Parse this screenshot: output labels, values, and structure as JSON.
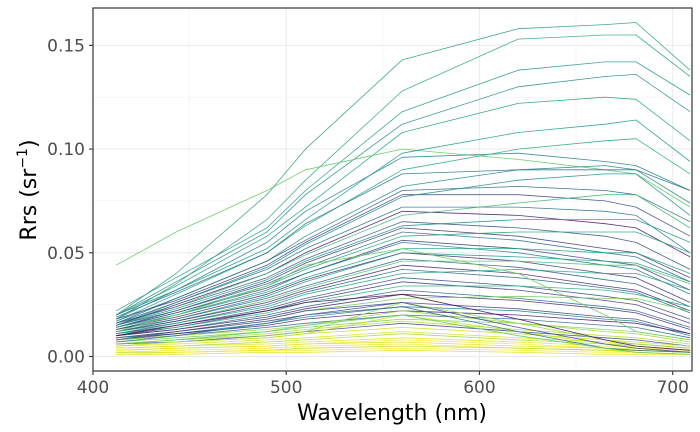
{
  "chart_data": {
    "type": "line",
    "xlabel": "Wavelength (nm)",
    "ylabel": {
      "main": "Rrs (sr",
      "superscript": "−1",
      "close": ")"
    },
    "xlim": [
      400,
      710
    ],
    "ylim": [
      -0.007,
      0.168
    ],
    "xticks": [
      400,
      500,
      600,
      700
    ],
    "xtick_labels": [
      "400",
      "500",
      "600",
      "700"
    ],
    "yticks": [
      0.0,
      0.05,
      0.1,
      0.15
    ],
    "ytick_labels": [
      "0.00",
      "0.05",
      "0.10",
      "0.15"
    ],
    "grid": true,
    "legend": "none",
    "colormap": "viridis",
    "palette": [
      "#440154",
      "#3b528b",
      "#21918c",
      "#5ec962",
      "#fde725"
    ],
    "x": [
      412,
      443,
      490,
      510,
      560,
      620,
      665,
      681,
      709
    ],
    "series": [
      {
        "values": [
          0.02,
          0.04,
          0.078,
          0.1,
          0.143,
          0.158,
          0.16,
          0.161,
          0.138
        ],
        "color": "#2f9e88"
      },
      {
        "values": [
          0.018,
          0.035,
          0.066,
          0.085,
          0.128,
          0.153,
          0.155,
          0.155,
          0.135
        ],
        "color": "#35a887"
      },
      {
        "values": [
          0.022,
          0.038,
          0.062,
          0.08,
          0.118,
          0.138,
          0.142,
          0.142,
          0.126
        ],
        "color": "#2a9b8a"
      },
      {
        "values": [
          0.02,
          0.036,
          0.06,
          0.078,
          0.112,
          0.13,
          0.135,
          0.136,
          0.118
        ],
        "color": "#2c8f8c"
      },
      {
        "values": [
          0.02,
          0.034,
          0.058,
          0.072,
          0.108,
          0.122,
          0.125,
          0.124,
          0.104
        ],
        "color": "#24a686"
      },
      {
        "values": [
          0.044,
          0.06,
          0.08,
          0.09,
          0.1,
          0.095,
          0.09,
          0.088,
          0.072
        ],
        "color": "#5ec962"
      },
      {
        "values": [
          0.018,
          0.032,
          0.052,
          0.066,
          0.098,
          0.108,
          0.112,
          0.114,
          0.094
        ],
        "color": "#1f9e89"
      },
      {
        "values": [
          0.02,
          0.032,
          0.055,
          0.07,
          0.096,
          0.098,
          0.094,
          0.092,
          0.08
        ],
        "color": "#26828e"
      },
      {
        "values": [
          0.017,
          0.03,
          0.05,
          0.063,
          0.09,
          0.1,
          0.104,
          0.105,
          0.088
        ],
        "color": "#27ad81"
      },
      {
        "values": [
          0.019,
          0.031,
          0.05,
          0.064,
          0.088,
          0.09,
          0.09,
          0.09,
          0.08
        ],
        "color": "#2d708e"
      },
      {
        "values": [
          0.017,
          0.028,
          0.046,
          0.058,
          0.082,
          0.09,
          0.092,
          0.09,
          0.074
        ],
        "color": "#238a8d"
      },
      {
        "values": [
          0.016,
          0.028,
          0.046,
          0.056,
          0.08,
          0.082,
          0.08,
          0.078,
          0.065
        ],
        "color": "#33638d"
      },
      {
        "values": [
          0.018,
          0.027,
          0.044,
          0.055,
          0.078,
          0.078,
          0.075,
          0.072,
          0.058
        ],
        "color": "#3e4a89"
      },
      {
        "values": [
          0.015,
          0.026,
          0.043,
          0.054,
          0.077,
          0.085,
          0.088,
          0.088,
          0.068
        ],
        "color": "#20928c"
      },
      {
        "values": [
          0.016,
          0.026,
          0.042,
          0.052,
          0.072,
          0.072,
          0.07,
          0.068,
          0.05
        ],
        "color": "#2a788e"
      },
      {
        "values": [
          0.015,
          0.025,
          0.04,
          0.05,
          0.07,
          0.068,
          0.064,
          0.062,
          0.048
        ],
        "color": "#481f70"
      },
      {
        "values": [
          0.015,
          0.024,
          0.04,
          0.049,
          0.068,
          0.074,
          0.078,
          0.078,
          0.062
        ],
        "color": "#3bbb75"
      },
      {
        "values": [
          0.016,
          0.024,
          0.038,
          0.047,
          0.065,
          0.062,
          0.058,
          0.055,
          0.042
        ],
        "color": "#39568c"
      },
      {
        "values": [
          0.015,
          0.023,
          0.037,
          0.046,
          0.063,
          0.066,
          0.066,
          0.066,
          0.055
        ],
        "color": "#1f988b"
      },
      {
        "values": [
          0.014,
          0.022,
          0.036,
          0.045,
          0.062,
          0.058,
          0.052,
          0.05,
          0.038
        ],
        "color": "#443983"
      },
      {
        "values": [
          0.015,
          0.022,
          0.035,
          0.043,
          0.06,
          0.056,
          0.05,
          0.048,
          0.036
        ],
        "color": "#2c728e"
      },
      {
        "values": [
          0.014,
          0.021,
          0.034,
          0.042,
          0.058,
          0.06,
          0.06,
          0.06,
          0.05
        ],
        "color": "#25ab82"
      },
      {
        "values": [
          0.014,
          0.021,
          0.033,
          0.04,
          0.056,
          0.052,
          0.046,
          0.044,
          0.032
        ],
        "color": "#414487"
      },
      {
        "values": [
          0.013,
          0.02,
          0.032,
          0.04,
          0.055,
          0.05,
          0.044,
          0.042,
          0.03
        ],
        "color": "#287c8e"
      },
      {
        "values": [
          0.014,
          0.02,
          0.031,
          0.038,
          0.052,
          0.052,
          0.05,
          0.05,
          0.04
        ],
        "color": "#21a585"
      },
      {
        "values": [
          0.013,
          0.019,
          0.03,
          0.037,
          0.05,
          0.046,
          0.04,
          0.038,
          0.026
        ],
        "color": "#46327e"
      },
      {
        "values": [
          0.012,
          0.018,
          0.029,
          0.036,
          0.05,
          0.048,
          0.046,
          0.045,
          0.036
        ],
        "color": "#1e9c89"
      },
      {
        "values": [
          0.013,
          0.018,
          0.028,
          0.034,
          0.047,
          0.043,
          0.037,
          0.035,
          0.024
        ],
        "color": "#365d8d"
      },
      {
        "values": [
          0.012,
          0.017,
          0.027,
          0.033,
          0.046,
          0.046,
          0.044,
          0.044,
          0.035
        ],
        "color": "#4ac16d"
      },
      {
        "values": [
          0.012,
          0.017,
          0.026,
          0.032,
          0.044,
          0.04,
          0.034,
          0.032,
          0.022
        ],
        "color": "#482878"
      },
      {
        "values": [
          0.011,
          0.016,
          0.025,
          0.031,
          0.042,
          0.038,
          0.033,
          0.031,
          0.021
        ],
        "color": "#2e6e8e"
      },
      {
        "values": [
          0.012,
          0.016,
          0.024,
          0.03,
          0.04,
          0.042,
          0.04,
          0.04,
          0.032
        ],
        "color": "#22a884"
      },
      {
        "values": [
          0.011,
          0.015,
          0.023,
          0.028,
          0.038,
          0.034,
          0.029,
          0.027,
          0.018
        ],
        "color": "#3b528b"
      },
      {
        "values": [
          0.01,
          0.014,
          0.022,
          0.027,
          0.036,
          0.032,
          0.027,
          0.025,
          0.016
        ],
        "color": "#433e85"
      },
      {
        "values": [
          0.011,
          0.014,
          0.021,
          0.026,
          0.034,
          0.034,
          0.032,
          0.03,
          0.024
        ],
        "color": "#2ab07f"
      },
      {
        "values": [
          0.01,
          0.013,
          0.02,
          0.024,
          0.032,
          0.028,
          0.024,
          0.022,
          0.014
        ],
        "color": "#31688e"
      },
      {
        "values": [
          0.01,
          0.013,
          0.019,
          0.023,
          0.03,
          0.027,
          0.023,
          0.021,
          0.013
        ],
        "color": "#472d7b"
      },
      {
        "values": [
          0.009,
          0.012,
          0.018,
          0.022,
          0.028,
          0.029,
          0.028,
          0.028,
          0.022
        ],
        "color": "#6ccd5a"
      },
      {
        "values": [
          0.009,
          0.012,
          0.017,
          0.02,
          0.026,
          0.023,
          0.019,
          0.018,
          0.011
        ],
        "color": "#3f4788"
      },
      {
        "values": [
          0.009,
          0.011,
          0.016,
          0.019,
          0.024,
          0.022,
          0.018,
          0.017,
          0.01
        ],
        "color": "#25848e"
      },
      {
        "values": [
          0.008,
          0.011,
          0.015,
          0.018,
          0.022,
          0.02,
          0.017,
          0.016,
          0.011
        ],
        "color": "#482374"
      },
      {
        "values": [
          0.008,
          0.01,
          0.014,
          0.016,
          0.02,
          0.018,
          0.015,
          0.014,
          0.009
        ],
        "color": "#2f6b8e"
      },
      {
        "values": [
          0.007,
          0.009,
          0.012,
          0.014,
          0.018,
          0.016,
          0.013,
          0.012,
          0.008
        ],
        "color": "#7ad151"
      },
      {
        "values": [
          0.008,
          0.01,
          0.013,
          0.015,
          0.022,
          0.016,
          0.012,
          0.011,
          0.007
        ],
        "color": "#9bd93c"
      },
      {
        "values": [
          0.006,
          0.008,
          0.011,
          0.013,
          0.017,
          0.013,
          0.01,
          0.009,
          0.006
        ],
        "color": "#b5de2b"
      },
      {
        "values": [
          0.006,
          0.007,
          0.01,
          0.012,
          0.016,
          0.012,
          0.009,
          0.008,
          0.005
        ],
        "color": "#3d4e8a"
      },
      {
        "values": [
          0.005,
          0.007,
          0.009,
          0.011,
          0.014,
          0.011,
          0.008,
          0.007,
          0.005
        ],
        "color": "#c8e020"
      },
      {
        "values": [
          0.005,
          0.006,
          0.008,
          0.009,
          0.012,
          0.009,
          0.007,
          0.006,
          0.004
        ],
        "color": "#d8e219"
      },
      {
        "values": [
          0.004,
          0.005,
          0.007,
          0.008,
          0.011,
          0.008,
          0.006,
          0.006,
          0.004
        ],
        "color": "#a5db36"
      },
      {
        "values": [
          0.004,
          0.005,
          0.006,
          0.007,
          0.009,
          0.007,
          0.005,
          0.005,
          0.003
        ],
        "color": "#e5e419"
      },
      {
        "values": [
          0.003,
          0.004,
          0.005,
          0.006,
          0.008,
          0.006,
          0.004,
          0.004,
          0.003
        ],
        "color": "#fde725"
      },
      {
        "values": [
          0.003,
          0.004,
          0.005,
          0.006,
          0.007,
          0.005,
          0.004,
          0.003,
          0.002
        ],
        "color": "#dde318"
      },
      {
        "values": [
          0.002,
          0.003,
          0.004,
          0.005,
          0.006,
          0.004,
          0.003,
          0.003,
          0.002
        ],
        "color": "#f1e51d"
      },
      {
        "values": [
          0.002,
          0.002,
          0.003,
          0.004,
          0.005,
          0.004,
          0.003,
          0.002,
          0.001
        ],
        "color": "#bddf26"
      },
      {
        "values": [
          0.001,
          0.002,
          0.003,
          0.003,
          0.004,
          0.003,
          0.002,
          0.002,
          0.001
        ],
        "color": "#fde725"
      },
      {
        "values": [
          0.001,
          0.001,
          0.002,
          0.002,
          0.003,
          0.002,
          0.001,
          0.001,
          0.001
        ],
        "color": "#e2e418"
      },
      {
        "values": [
          0.006,
          0.008,
          0.01,
          0.012,
          0.026,
          0.016,
          0.008,
          0.006,
          0.004
        ],
        "color": "#8fd744"
      },
      {
        "values": [
          0.005,
          0.007,
          0.009,
          0.011,
          0.02,
          0.012,
          0.006,
          0.005,
          0.003
        ],
        "color": "#c2df23"
      },
      {
        "values": [
          0.012,
          0.02,
          0.034,
          0.044,
          0.052,
          0.04,
          0.02,
          0.012,
          0.008
        ],
        "color": "#6ccd5a"
      },
      {
        "values": [
          0.01,
          0.015,
          0.022,
          0.026,
          0.03,
          0.018,
          0.008,
          0.005,
          0.003
        ],
        "color": "#46085c"
      },
      {
        "values": [
          0.008,
          0.012,
          0.018,
          0.022,
          0.026,
          0.014,
          0.006,
          0.004,
          0.002
        ],
        "color": "#3e4989"
      },
      {
        "values": [
          0.007,
          0.01,
          0.016,
          0.02,
          0.024,
          0.012,
          0.004,
          0.003,
          0.002
        ],
        "color": "#2d708e"
      },
      {
        "values": [
          0.006,
          0.008,
          0.012,
          0.015,
          0.02,
          0.01,
          0.004,
          0.002,
          0.001
        ],
        "color": "#5ec962"
      }
    ]
  }
}
